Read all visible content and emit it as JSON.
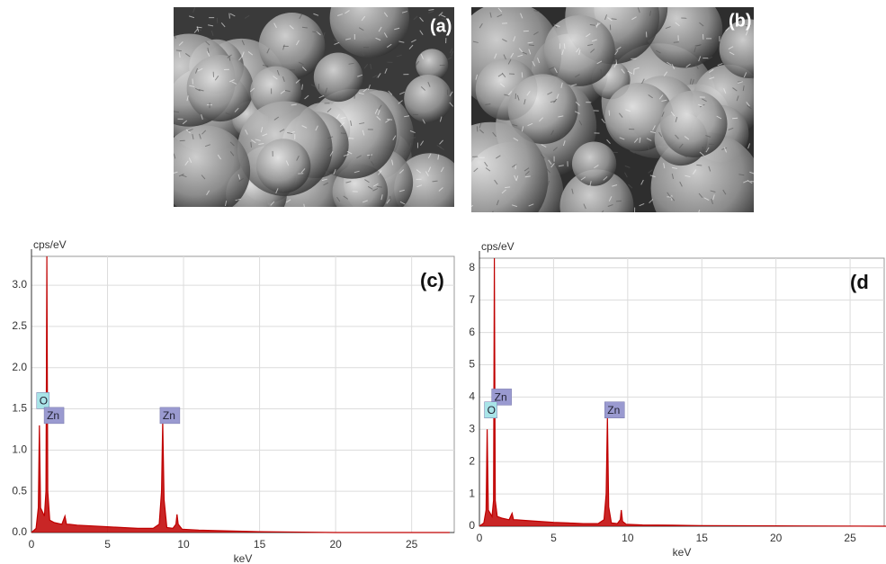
{
  "panels": [
    {
      "label": "(a)"
    },
    {
      "label": "(b)"
    }
  ],
  "chart_data": [
    {
      "type": "area",
      "label": "(c)",
      "y_label": "cps/eV",
      "x_label": "keV",
      "color": "#c00000",
      "x": [
        0,
        0.3,
        0.45,
        0.52,
        0.6,
        0.85,
        0.95,
        1.01,
        1.07,
        1.2,
        1.5,
        2.0,
        2.2,
        2.3,
        2.5,
        3,
        4,
        5,
        6,
        7,
        8,
        8.4,
        8.55,
        8.63,
        8.72,
        8.9,
        9.3,
        9.5,
        9.57,
        9.65,
        9.9,
        11,
        13,
        15,
        20,
        27.5
      ],
      "values": [
        0,
        0.05,
        0.3,
        1.3,
        0.3,
        0.2,
        0.5,
        3.35,
        0.5,
        0.15,
        0.12,
        0.1,
        0.2,
        0.1,
        0.1,
        0.09,
        0.08,
        0.07,
        0.06,
        0.05,
        0.05,
        0.1,
        0.5,
        1.35,
        0.4,
        0.06,
        0.05,
        0.1,
        0.22,
        0.1,
        0.04,
        0.03,
        0.02,
        0.01,
        0,
        0
      ],
      "xlim": [
        0,
        27.8
      ],
      "xticks": [
        0,
        5,
        10,
        15,
        20,
        25
      ],
      "ylim": [
        0,
        3.35
      ],
      "yticks": [
        {
          "value": 0,
          "label": "0.0"
        },
        0.5,
        {
          "value": 1,
          "label": "1.0"
        },
        1.5,
        {
          "value": 2,
          "label": "2.0"
        },
        2.5,
        {
          "value": 3,
          "label": "3.0"
        }
      ],
      "grid": true,
      "annotations": [
        {
          "text": "O",
          "x": 0.52,
          "y": 1.6,
          "color": "#a8e4e8"
        },
        {
          "text": "Zn",
          "x": 1.01,
          "y": 1.42,
          "color": "#9a9ad0"
        },
        {
          "text": "Zn",
          "x": 8.63,
          "y": 1.42,
          "color": "#9a9ad0"
        }
      ]
    },
    {
      "type": "area",
      "label": "(d",
      "y_label": "cps/eV",
      "x_label": "keV",
      "color": "#c00000",
      "x": [
        0,
        0.3,
        0.45,
        0.52,
        0.6,
        0.85,
        0.95,
        1.01,
        1.07,
        1.2,
        1.5,
        2.0,
        2.2,
        2.3,
        2.5,
        3,
        4,
        5,
        6,
        7,
        8,
        8.4,
        8.55,
        8.63,
        8.72,
        8.9,
        9.3,
        9.5,
        9.57,
        9.65,
        9.9,
        11,
        13,
        15,
        20,
        27.5
      ],
      "values": [
        0,
        0.1,
        0.5,
        3.0,
        0.5,
        0.3,
        0.8,
        8.3,
        0.8,
        0.3,
        0.25,
        0.2,
        0.4,
        0.2,
        0.2,
        0.18,
        0.15,
        0.12,
        0.1,
        0.08,
        0.08,
        0.2,
        1,
        3.4,
        0.6,
        0.1,
        0.08,
        0.2,
        0.5,
        0.15,
        0.06,
        0.04,
        0.03,
        0.02,
        0.01,
        0
      ],
      "xlim": [
        0,
        27.3
      ],
      "xticks": [
        0,
        5,
        10,
        15,
        20,
        25
      ],
      "ylim": [
        0,
        8.3
      ],
      "yticks": [
        0,
        1,
        2,
        3,
        4,
        5,
        6,
        7,
        8
      ],
      "grid": true,
      "annotations": [
        {
          "text": "Zn",
          "x": 1.01,
          "y": 4.0,
          "color": "#9a9ad0"
        },
        {
          "text": "O",
          "x": 0.52,
          "y": 3.6,
          "color": "#a8e4e8"
        },
        {
          "text": "Zn",
          "x": 8.63,
          "y": 3.6,
          "color": "#9a9ad0"
        }
      ]
    }
  ]
}
